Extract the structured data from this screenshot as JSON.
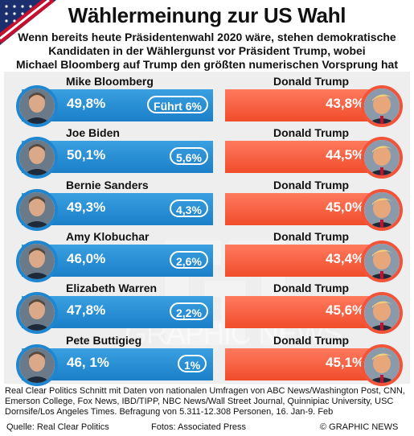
{
  "header": {
    "title": "Wählermeinung zur US Wahl",
    "subtitle_lines": [
      "Wenn bereits heute Präsidentenwahl 2020 wäre, stehen demokratische",
      "Kandidaten in der Wählergunst vor Präsident Trump,  wobei",
      "Michael Bloomberg auf Trump den größten numerischen Vorsprung hat"
    ]
  },
  "opponent": {
    "name": "Donald Trump",
    "photo_icon": "trump-photo-icon"
  },
  "colors": {
    "democrat": "#1f86cf",
    "republican": "#f2543a",
    "panel": "#eeeeee"
  },
  "chart_data": {
    "type": "bar",
    "categories": [
      "Mike Bloomberg",
      "Joe Biden",
      "Bernie Sanders",
      "Amy Klobuchar",
      "Elizabeth Warren",
      "Pete Buttigieg"
    ],
    "series": [
      {
        "values": [
          49.8,
          50.1,
          49.3,
          46.0,
          47.8,
          46.1
        ]
      },
      {
        "name": "Donald Trump",
        "values": [
          43.8,
          44.5,
          45.0,
          43.4,
          45.6,
          45.1
        ]
      }
    ],
    "rows": [
      {
        "name": "Mike Bloomberg",
        "dem_label": "49,8%",
        "lead_label": "Führt 6%",
        "trump_label": "43,8%"
      },
      {
        "name": "Joe Biden",
        "dem_label": "50,1%",
        "lead_label": "5,6%",
        "trump_label": "44,5%"
      },
      {
        "name": "Bernie Sanders",
        "dem_label": "49,3%",
        "lead_label": "4,3%",
        "trump_label": "45,0%"
      },
      {
        "name": "Amy Klobuchar",
        "dem_label": "46,0%",
        "lead_label": "2,6%",
        "trump_label": "43,4%"
      },
      {
        "name": "Elizabeth Warren",
        "dem_label": "47,8%",
        "lead_label": "2,2%",
        "trump_label": "45,6%"
      },
      {
        "name": "Pete Buttigieg",
        "dem_label": "46, 1%",
        "lead_label": "1%",
        "trump_label": "45,1%"
      }
    ]
  },
  "source": {
    "text": "Real Clear Politics Schnitt mit Daten von nationalen Umfragen von ABC News/Washington Post, CNN, Emerson College, Fox News, IBD/TIPP, NBC News/Wall Street Journal, Quinnipiac University, USC Dornsife/Los Angeles Times. Befragung von 5.311-12.308 Personen, 16. Jan-9. Feb",
    "quelle": "Quelle: Real Clear Politics",
    "fotos": "Fotos: Associated Press",
    "credit": "© GRAPHIC NEWS"
  },
  "watermark": "GRAPHIC NEWS"
}
